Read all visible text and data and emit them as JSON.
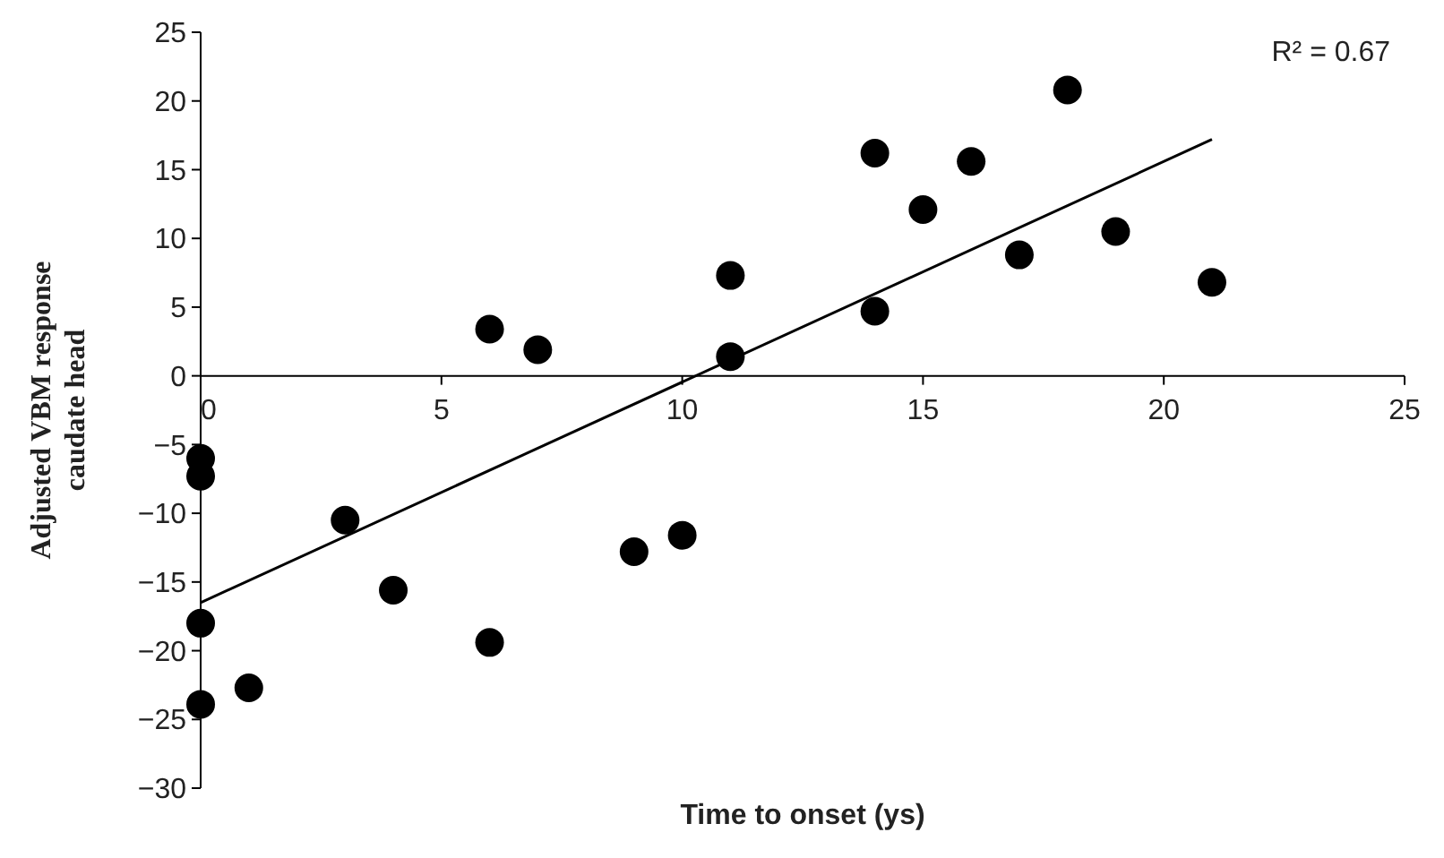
{
  "chart_data": {
    "type": "scatter",
    "xlabel": "Time to onset (ys)",
    "ylabel": "Adjusted VBM response caudate head",
    "annotations": [
      "R² = 0.67"
    ],
    "xlim": [
      0,
      25
    ],
    "xticks": [
      0,
      5,
      10,
      15,
      20,
      25
    ],
    "ylim": [
      -30,
      25
    ],
    "yticks": [
      {
        "value": -30,
        "label": "−30"
      },
      {
        "value": -25,
        "label": "−25"
      },
      {
        "value": -20,
        "label": "−20"
      },
      {
        "value": -15,
        "label": "−15"
      },
      {
        "value": -10,
        "label": "−10"
      },
      {
        "value": -5,
        "label": "−5"
      },
      0,
      5,
      10,
      15,
      20,
      25
    ],
    "marker": "circle",
    "grid": false,
    "series": [
      {
        "type": "scatter",
        "color": "#000000",
        "x": [
          0,
          0,
          0,
          0,
          1,
          3,
          4,
          6,
          6,
          7,
          9,
          10,
          11,
          11,
          14,
          14,
          15,
          16,
          17,
          18,
          19,
          21
        ],
        "values": [
          -6,
          -7.3,
          -18,
          -23.9,
          -22.7,
          -10.5,
          -15.6,
          -19.4,
          3.4,
          1.9,
          -12.8,
          -11.6,
          7.3,
          1.4,
          16.2,
          4.7,
          12.1,
          15.6,
          8.8,
          20.8,
          10.5,
          6.8
        ]
      },
      {
        "type": "line",
        "color": "#000000",
        "marker": "none",
        "x": [
          0,
          21
        ],
        "values": [
          -16.5,
          17.2
        ]
      }
    ]
  }
}
